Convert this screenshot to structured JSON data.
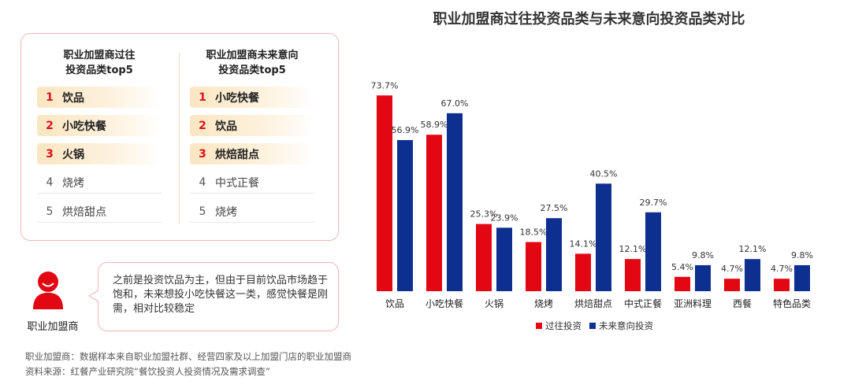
{
  "left_panel": {
    "past": {
      "heading": "职业加盟商过往\n投资品类top5",
      "items": [
        {
          "rank": "1",
          "name": "饮品",
          "highlight": true
        },
        {
          "rank": "2",
          "name": "小吃快餐",
          "highlight": true
        },
        {
          "rank": "3",
          "name": "火锅",
          "highlight": true
        },
        {
          "rank": "4",
          "name": "烧烤",
          "highlight": false
        },
        {
          "rank": "5",
          "name": "烘焙甜点",
          "highlight": false
        }
      ]
    },
    "future": {
      "heading": "职业加盟商未来意向\n投资品类top5",
      "items": [
        {
          "rank": "1",
          "name": "小吃快餐",
          "highlight": true
        },
        {
          "rank": "2",
          "name": "饮品",
          "highlight": true
        },
        {
          "rank": "3",
          "name": "烘焙甜点",
          "highlight": true
        },
        {
          "rank": "4",
          "name": "中式正餐",
          "highlight": false
        },
        {
          "rank": "5",
          "name": "烧烤",
          "highlight": false
        }
      ]
    }
  },
  "speaker": {
    "label": "职业加盟商",
    "quote": "之前是投资饮品为主，但由于目前饮品市场趋于饱和，未来想投小吃快餐这一类，感觉快餐是刚需，相对比较稳定"
  },
  "footnotes": {
    "sample": "职业加盟商：数据样本来自职业加盟社群、经营四家及以上加盟门店的职业加盟商",
    "source": "资料来源：红餐产业研究院“餐饮投资人投资情况及需求调查”"
  },
  "chart_data": {
    "type": "bar",
    "title": "职业加盟商过往投资品类与未来意向投资品类对比",
    "categories": [
      "饮品",
      "小吃快餐",
      "火锅",
      "烧烤",
      "烘焙甜点",
      "中式正餐",
      "亚洲料理",
      "西餐",
      "特色品类"
    ],
    "series": [
      {
        "name": "过往投资",
        "color": "#e30613",
        "values": [
          73.7,
          58.9,
          25.3,
          18.5,
          14.1,
          12.1,
          5.4,
          4.7,
          4.7
        ],
        "labels": [
          "73.7%",
          "58.9%",
          "25.3%",
          "18.5%",
          "14.1%",
          "12.1%",
          "5.4%",
          "4.7%",
          "4.7%"
        ]
      },
      {
        "name": "未来意向投资",
        "color": "#0d2f8f",
        "values": [
          56.9,
          67.0,
          23.9,
          27.5,
          40.5,
          29.7,
          9.8,
          12.1,
          9.8
        ],
        "labels": [
          "56.9%",
          "67.0%",
          "23.9%",
          "27.5%",
          "40.5%",
          "29.7%",
          "9.8%",
          "12.1%",
          "9.8%"
        ]
      }
    ],
    "ylim": [
      0,
      80
    ],
    "legend_position": "bottom"
  }
}
